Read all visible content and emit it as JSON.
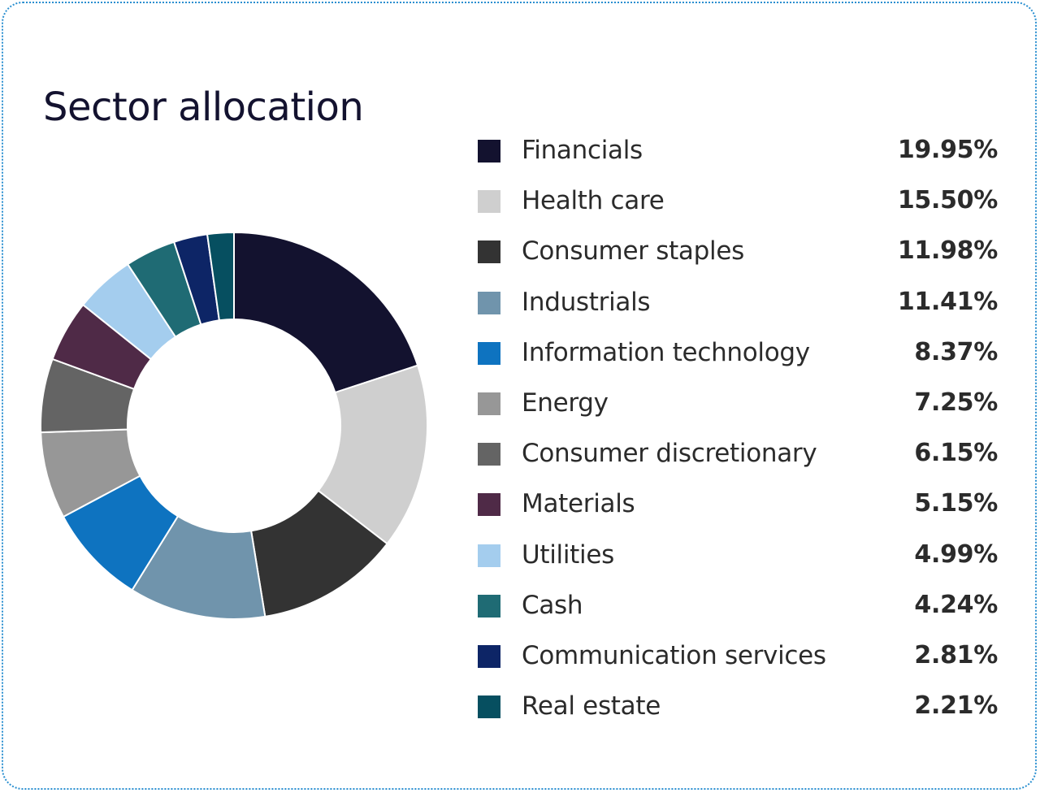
{
  "chart_data": {
    "type": "pie",
    "variant": "donut",
    "title": "Sector allocation",
    "legend_position": "right",
    "categories": [
      "Financials",
      "Health care",
      "Consumer staples",
      "Industrials",
      "Information technology",
      "Energy",
      "Consumer discretionary",
      "Materials",
      "Utilities",
      "Cash",
      "Communication services",
      "Real estate"
    ],
    "values": [
      19.95,
      15.5,
      11.98,
      11.41,
      8.37,
      7.25,
      6.15,
      5.15,
      4.99,
      4.24,
      2.81,
      2.21
    ],
    "value_labels": [
      "19.95%",
      "15.50%",
      "11.98%",
      "11.41%",
      "8.37%",
      "7.25%",
      "6.15%",
      "5.15%",
      "4.99%",
      "4.24%",
      "2.81%",
      "2.21%"
    ],
    "colors": [
      "#13122f",
      "#cfcfcf",
      "#333333",
      "#7094ac",
      "#0e73c0",
      "#979797",
      "#646464",
      "#4f2a47",
      "#a4cdee",
      "#1f6b74",
      "#0d2566",
      "#064f60"
    ]
  }
}
